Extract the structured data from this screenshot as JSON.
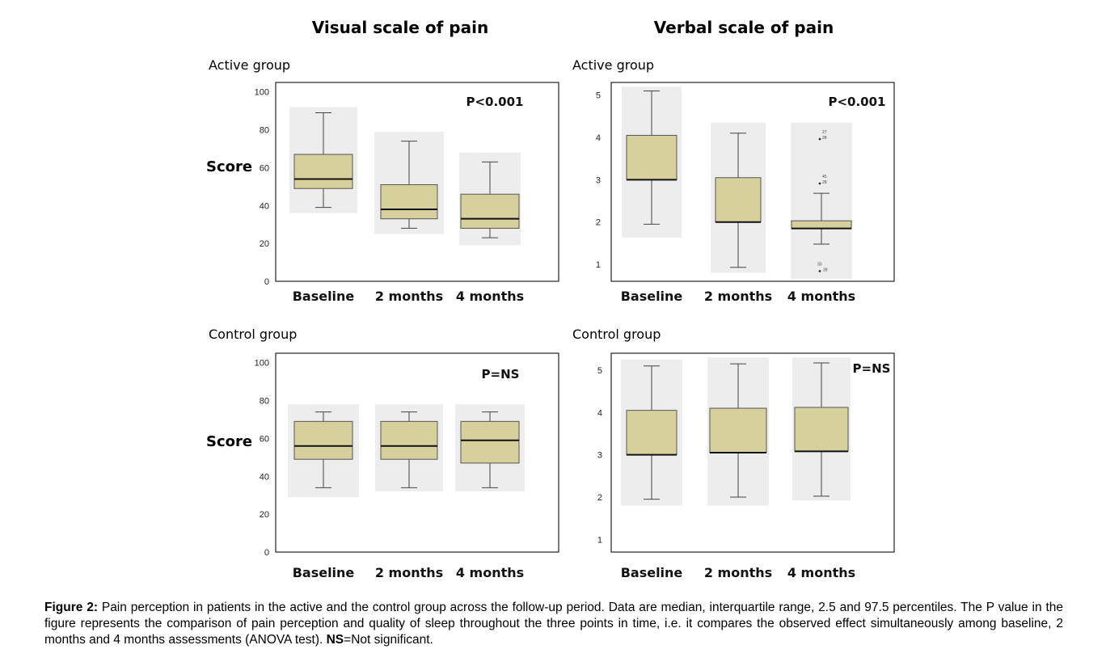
{
  "titles": {
    "left": "Visual scale of pain",
    "right": "Verbal scale of pain"
  },
  "group_labels": {
    "active": "Active group",
    "control": "Control group"
  },
  "ylabel": "Score",
  "caption": {
    "label": "Figure 2:",
    "text": " Pain perception in patients in the active and the control group across the follow-up period. Data are median, interquartile range, 2.5 and 97.5 percentiles. The P value in the figure represents the comparison of pain perception and quality of sleep throughout the three points in time, i.e. it compares the observed effect  simultaneously among baseline, 2 months and 4 months assessments (ANOVA test). ",
    "ns_label": "NS",
    "ns_text": "=Not significant."
  },
  "chart_data": [
    {
      "id": "visual-active",
      "type": "box",
      "group": "Active group",
      "categories": [
        "Baseline",
        "2 months",
        "4 months"
      ],
      "ylim": [
        0,
        105
      ],
      "yticks": [
        "0",
        "20",
        "40",
        "60",
        "80",
        "100"
      ],
      "annotation": "P<0.001",
      "series": [
        {
          "whisker_low": 39,
          "q1": 49,
          "median": 54,
          "q3": 67,
          "whisker_high": 89,
          "band": [
            36,
            92
          ]
        },
        {
          "whisker_low": 28,
          "q1": 33,
          "median": 38,
          "q3": 51,
          "whisker_high": 74,
          "band": [
            25,
            79
          ]
        },
        {
          "whisker_low": 23,
          "q1": 28,
          "median": 33,
          "q3": 46,
          "whisker_high": 63,
          "band": [
            19,
            68
          ]
        }
      ]
    },
    {
      "id": "verbal-active",
      "type": "box",
      "group": "Active group",
      "categories": [
        "Baseline",
        "2 months",
        "4 months"
      ],
      "ylim": [
        0.6,
        5.3
      ],
      "yticks": [
        "1",
        "2",
        "3",
        "4",
        "5"
      ],
      "annotation": "P<0.001",
      "series": [
        {
          "whisker_low": 1.95,
          "q1": 3.0,
          "median": 3.0,
          "q3": 4.05,
          "whisker_high": 5.1,
          "band": [
            1.63,
            5.2
          ]
        },
        {
          "whisker_low": 0.93,
          "q1": 2.0,
          "median": 2.0,
          "q3": 3.05,
          "whisker_high": 4.1,
          "band": [
            0.8,
            4.35
          ]
        },
        {
          "whisker_low": 1.48,
          "q1": 1.85,
          "median": 1.85,
          "q3": 2.03,
          "whisker_high": 2.68,
          "band": [
            0.65,
            4.35
          ],
          "outliers": [
            {
              "y": 4.0,
              "labels": [
                "27",
                "28"
              ]
            },
            {
              "y": 2.95,
              "labels": [
                "45",
                "28"
              ]
            },
            {
              "y": 0.88,
              "labels": [
                "33",
                "39"
              ]
            }
          ]
        }
      ]
    },
    {
      "id": "visual-control",
      "type": "box",
      "group": "Control group",
      "categories": [
        "Baseline",
        "2 months",
        "4 months"
      ],
      "ylim": [
        0,
        105
      ],
      "yticks": [
        "0",
        "20",
        "40",
        "60",
        "80",
        "100"
      ],
      "annotation": "P=NS",
      "series": [
        {
          "whisker_low": 34,
          "q1": 49,
          "median": 56,
          "q3": 69,
          "whisker_high": 74,
          "band": [
            29,
            78
          ]
        },
        {
          "whisker_low": 34,
          "q1": 49,
          "median": 56,
          "q3": 69,
          "whisker_high": 74,
          "band": [
            32,
            78
          ]
        },
        {
          "whisker_low": 34,
          "q1": 47,
          "median": 59,
          "q3": 69,
          "whisker_high": 74,
          "band": [
            32,
            78
          ]
        }
      ]
    },
    {
      "id": "verbal-control",
      "type": "box",
      "group": "Control group",
      "categories": [
        "Baseline",
        "2 months",
        "4 months"
      ],
      "ylim": [
        0.7,
        5.4
      ],
      "yticks": [
        "1",
        "2",
        "3",
        "4",
        "5"
      ],
      "annotation": "P=NS",
      "series": [
        {
          "whisker_low": 1.95,
          "q1": 3.0,
          "median": 3.0,
          "q3": 4.05,
          "whisker_high": 5.1,
          "band": [
            1.8,
            5.25
          ]
        },
        {
          "whisker_low": 2.0,
          "q1": 3.05,
          "median": 3.05,
          "q3": 4.1,
          "whisker_high": 5.15,
          "band": [
            1.8,
            5.3
          ]
        },
        {
          "whisker_low": 2.02,
          "q1": 3.08,
          "median": 3.08,
          "q3": 4.12,
          "whisker_high": 5.17,
          "band": [
            1.92,
            5.3
          ]
        }
      ]
    }
  ]
}
